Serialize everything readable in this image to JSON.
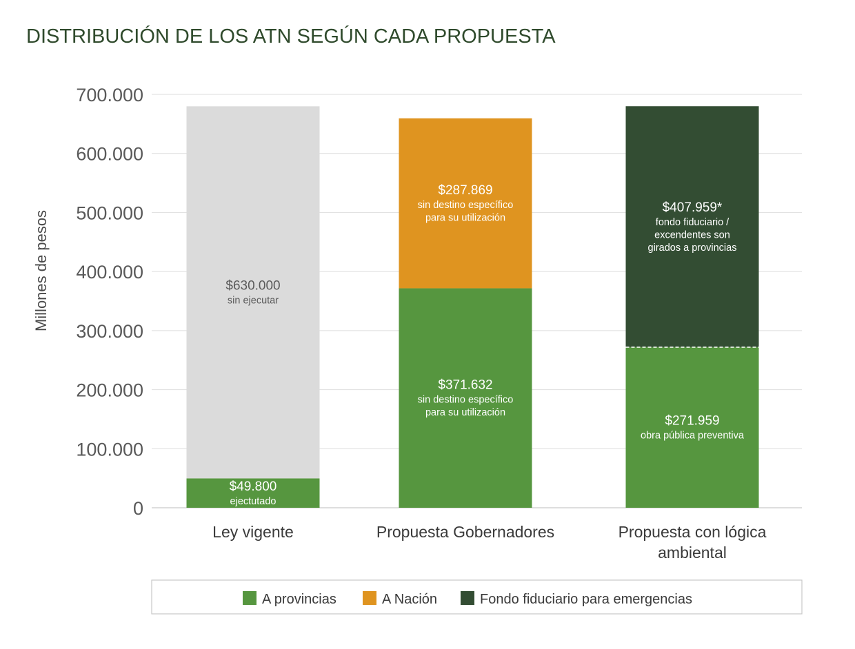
{
  "colors": {
    "provincias": "#56963f",
    "nacion": "#df9420",
    "fondo": "#334d33",
    "sin_ejecutar": "#dbdbdb",
    "title": "#2f4a2c"
  },
  "chart_data": {
    "type": "bar",
    "stacked": true,
    "title": "DISTRIBUCIÓN DE LOS ATN SEGÚN CADA PROPUESTA",
    "xlabel": "",
    "ylabel": "Millones de pesos",
    "ylim": [
      0,
      700000
    ],
    "yticks": [
      0,
      100000,
      200000,
      300000,
      400000,
      500000,
      600000,
      700000
    ],
    "ytick_labels": [
      "0",
      "100.000",
      "200.000",
      "300.000",
      "400.000",
      "500.000",
      "600.000",
      "700.000"
    ],
    "grid": true,
    "legend_position": "bottom",
    "categories": [
      {
        "label_lines": [
          "Ley vigente"
        ]
      },
      {
        "label_lines": [
          "Propuesta Gobernadores"
        ]
      },
      {
        "label_lines": [
          "Propuesta con lógica",
          "ambiental"
        ]
      }
    ],
    "bars": [
      {
        "category": "Ley vigente",
        "segments": [
          {
            "series": "A provincias",
            "value": 49800,
            "value_label": "$49.800",
            "desc_lines": [
              "ejectutado"
            ],
            "color": "#56963f",
            "text_color": "#ffffff",
            "divider": "none"
          },
          {
            "series": "Sin ejecutar",
            "value": 630000,
            "value_label": "$630.000",
            "desc_lines": [
              "sin ejecutar"
            ],
            "color": "#dbdbdb",
            "text_color": "#5a5a5a",
            "divider": "none"
          }
        ]
      },
      {
        "category": "Propuesta Gobernadores",
        "segments": [
          {
            "series": "A provincias",
            "value": 371632,
            "value_label": "$371.632",
            "desc_lines": [
              "sin destino específico",
              "para su utilización"
            ],
            "color": "#56963f",
            "text_color": "#ffffff",
            "divider": "none"
          },
          {
            "series": "A Nación",
            "value": 287869,
            "value_label": "$287.869",
            "desc_lines": [
              "sin destino específico",
              "para su utilización"
            ],
            "color": "#df9420",
            "text_color": "#ffffff",
            "divider": "none"
          }
        ]
      },
      {
        "category": "Propuesta con lógica ambiental",
        "segments": [
          {
            "series": "A provincias",
            "value": 271959,
            "value_label": "$271.959",
            "desc_lines": [
              "obra pública preventiva"
            ],
            "color": "#56963f",
            "text_color": "#ffffff",
            "divider": "none"
          },
          {
            "series": "Fondo fiduciario para emergencias",
            "value": 407959,
            "value_label": "$407.959*",
            "desc_lines": [
              "fondo fiduciario /",
              "excendentes son",
              "girados a provincias"
            ],
            "color": "#334d33",
            "text_color": "#ffffff",
            "divider": "dashed"
          }
        ]
      }
    ],
    "legend": [
      {
        "label": "A provincias",
        "color": "#56963f"
      },
      {
        "label": "A Nación",
        "color": "#df9420"
      },
      {
        "label": "Fondo fiduciario para emergencias",
        "color": "#334d33"
      }
    ]
  }
}
